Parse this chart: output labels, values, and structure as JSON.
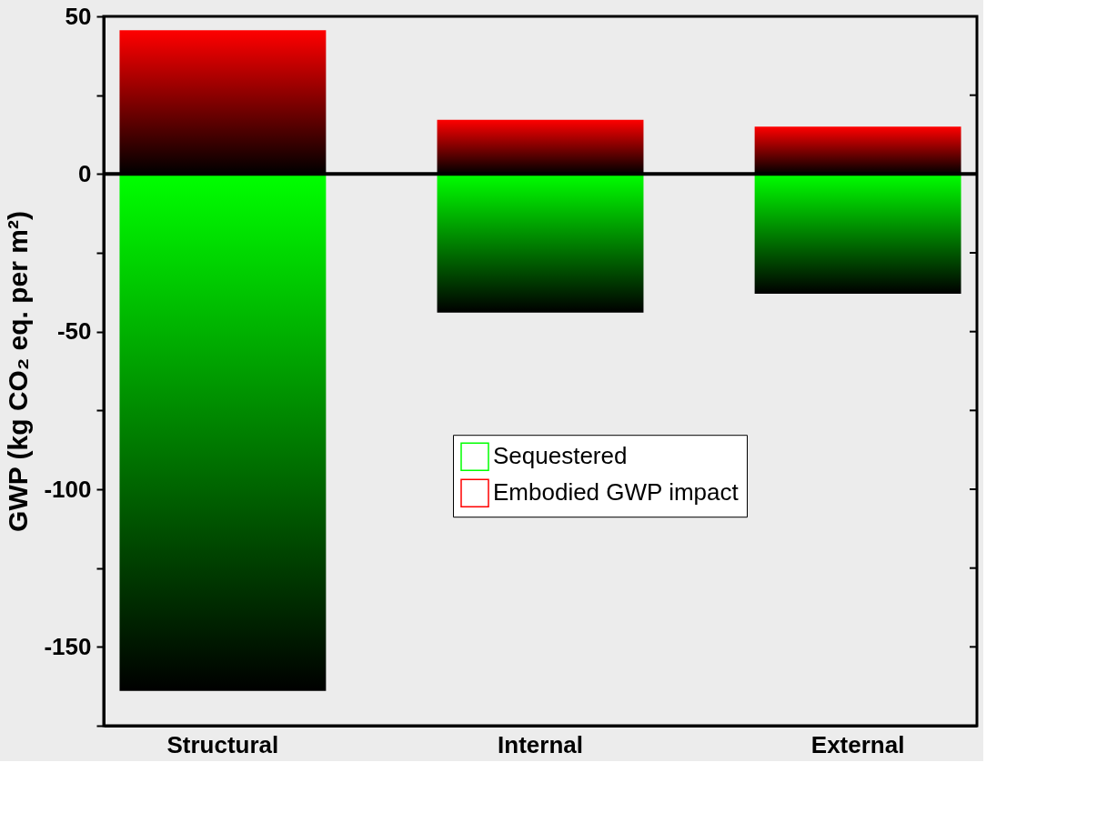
{
  "chart_data": {
    "type": "bar",
    "ylabel": "GWP (kg CO₂ eq. per m²)",
    "categories": [
      "Structural",
      "Internal",
      "External"
    ],
    "series": [
      {
        "name": "Sequestered",
        "color": "#00ff00",
        "values": [
          -164,
          -44,
          -38
        ]
      },
      {
        "name": "Embodied GWP impact",
        "color": "#ff0000",
        "values": [
          45.6,
          17.2,
          15
        ]
      }
    ],
    "stacked": true,
    "ylim": [
      -175,
      50
    ],
    "yticks": [
      {
        "value": -175,
        "label": null
      },
      -150,
      {
        "value": -125,
        "label": null
      },
      -100,
      {
        "value": -75,
        "label": null
      },
      -50,
      {
        "value": -25,
        "label": null
      },
      0,
      {
        "value": 25,
        "label": null
      },
      50
    ],
    "ref_lines": [
      {
        "axis": "y",
        "value": 0,
        "color": "#000000"
      }
    ],
    "legend": "center right",
    "grid": false
  }
}
